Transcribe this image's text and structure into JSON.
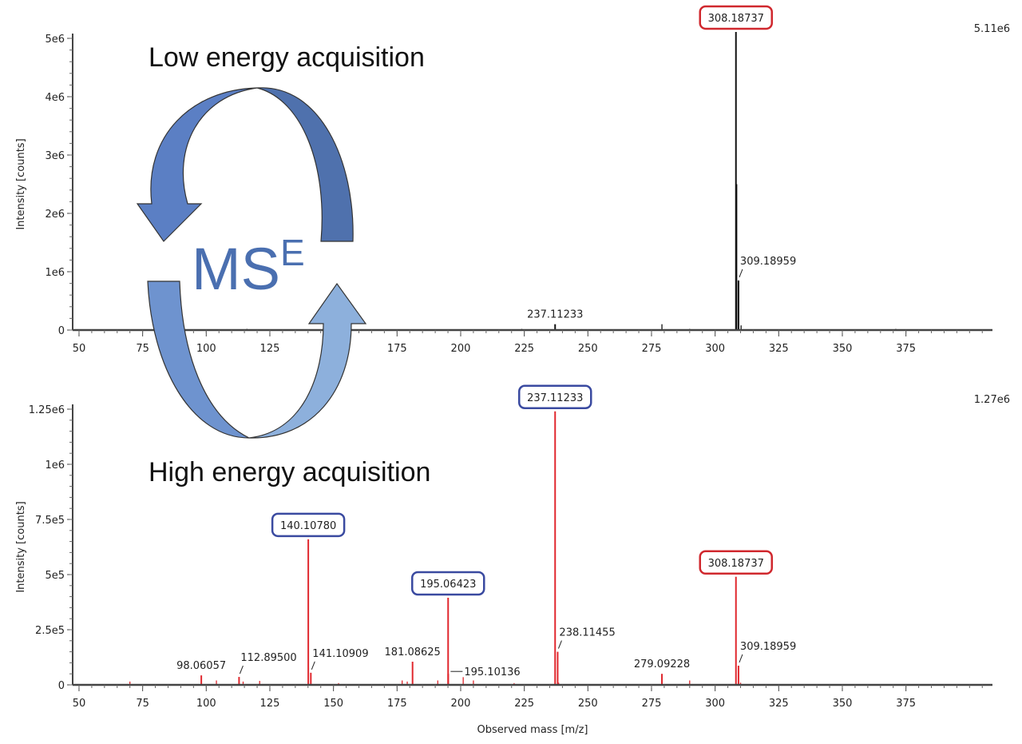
{
  "overlay": {
    "low_label": "Low energy acquisition",
    "high_label": "High energy acquisition",
    "mse_main": "MS",
    "mse_sup": "E",
    "arrow_colors": [
      "#5b7fc4",
      "#4f71ad",
      "#6e93cf",
      "#8db0dc"
    ]
  },
  "colors": {
    "low": "#111111",
    "high": "#e0282e",
    "box_precursor": "#d0282e",
    "box_fragment": "#3a4aa0"
  },
  "chart_data": [
    {
      "type": "line",
      "title": "",
      "xlabel": "",
      "ylabel": "Intensity [counts]",
      "max_label": "5.11e6",
      "xlim": [
        47.5,
        409
      ],
      "ylim": [
        0,
        5110000.0
      ],
      "xticks": [
        "50",
        "75",
        "100",
        "125",
        "150",
        "175",
        "200",
        "225",
        "250",
        "275",
        "300",
        "325",
        "350",
        "375"
      ],
      "yticks": [
        {
          "v": 0,
          "t": "0"
        },
        {
          "v": 1000000.0,
          "t": "1e6"
        },
        {
          "v": 2000000.0,
          "t": "2e6"
        },
        {
          "v": 3000000.0,
          "t": "3e6"
        },
        {
          "v": 4000000.0,
          "t": "4e6"
        },
        {
          "v": 5000000.0,
          "t": "5e6"
        }
      ],
      "peaks": [
        {
          "mz": 308.18737,
          "i": 5110000.0,
          "label": "308.18737",
          "box": "precursor"
        },
        {
          "mz": 308.5,
          "i": 2500000.0
        },
        {
          "mz": 309.18959,
          "i": 850000.0,
          "label": "309.18959",
          "lead": true
        },
        {
          "mz": 310.2,
          "i": 80000.0
        },
        {
          "mz": 237.11233,
          "i": 100000.0,
          "label": "237.11233"
        },
        {
          "mz": 279.1,
          "i": 100000.0
        },
        {
          "mz": 224,
          "i": 20000.0
        },
        {
          "mz": 116,
          "i": 20000.0
        },
        {
          "mz": 290,
          "i": 20000.0
        },
        {
          "mz": 371,
          "i": 20000.0
        }
      ]
    },
    {
      "type": "line",
      "title": "",
      "xlabel": "Observed mass [m/z]",
      "ylabel": "Intensity [counts]",
      "max_label": "1.27e6",
      "xlim": [
        47.5,
        409
      ],
      "ylim": [
        0,
        1270000.0
      ],
      "xticks": [
        "50",
        "75",
        "100",
        "125",
        "150",
        "175",
        "200",
        "225",
        "250",
        "275",
        "300",
        "325",
        "350",
        "375"
      ],
      "yticks": [
        {
          "v": 0,
          "t": "0"
        },
        {
          "v": 250000.0,
          "t": "2.5e5"
        },
        {
          "v": 500000.0,
          "t": "5e5"
        },
        {
          "v": 750000.0,
          "t": "7.5e5"
        },
        {
          "v": 1000000.0,
          "t": "1e6"
        },
        {
          "v": 1250000.0,
          "t": "1.25e6"
        }
      ],
      "peaks": [
        {
          "mz": 237.11233,
          "i": 1240000.0,
          "label": "237.11233",
          "box": "fragment"
        },
        {
          "mz": 140.1078,
          "i": 660000.0,
          "label": "140.10780",
          "box": "fragment"
        },
        {
          "mz": 195.06423,
          "i": 395000.0,
          "label": "195.06423",
          "box": "fragment"
        },
        {
          "mz": 308.18737,
          "i": 490000.0,
          "label": "308.18737",
          "box": "precursor"
        },
        {
          "mz": 238.11455,
          "i": 150000.0,
          "label": "238.11455",
          "lead": true
        },
        {
          "mz": 309.18959,
          "i": 87000.0,
          "label": "309.18959",
          "lead": true
        },
        {
          "mz": 181.08625,
          "i": 105000.0,
          "label": "181.08625"
        },
        {
          "mz": 141.10909,
          "i": 55000.0,
          "label": "141.10909",
          "lead": true
        },
        {
          "mz": 98.06057,
          "i": 43000.0,
          "label": "98.06057"
        },
        {
          "mz": 112.895,
          "i": 36000.0,
          "label": "112.89500",
          "lead": true
        },
        {
          "mz": 195.10136,
          "i": 50000.0,
          "label": "195.10136",
          "side": true
        },
        {
          "mz": 279.09228,
          "i": 50000.0,
          "label": "279.09228"
        },
        {
          "mz": 70,
          "i": 15000.0
        },
        {
          "mz": 104,
          "i": 20000.0
        },
        {
          "mz": 114.5,
          "i": 15000.0
        },
        {
          "mz": 121,
          "i": 18000.0
        },
        {
          "mz": 177,
          "i": 20000.0
        },
        {
          "mz": 179,
          "i": 15000.0
        },
        {
          "mz": 191,
          "i": 20000.0
        },
        {
          "mz": 201,
          "i": 35000.0
        },
        {
          "mz": 205,
          "i": 20000.0
        },
        {
          "mz": 238.5,
          "i": 10000.0
        },
        {
          "mz": 290,
          "i": 20000.0
        },
        {
          "mz": 310,
          "i": 10000.0
        },
        {
          "mz": 152,
          "i": 8000.0
        },
        {
          "mz": 221,
          "i": 8000.0
        }
      ]
    }
  ]
}
